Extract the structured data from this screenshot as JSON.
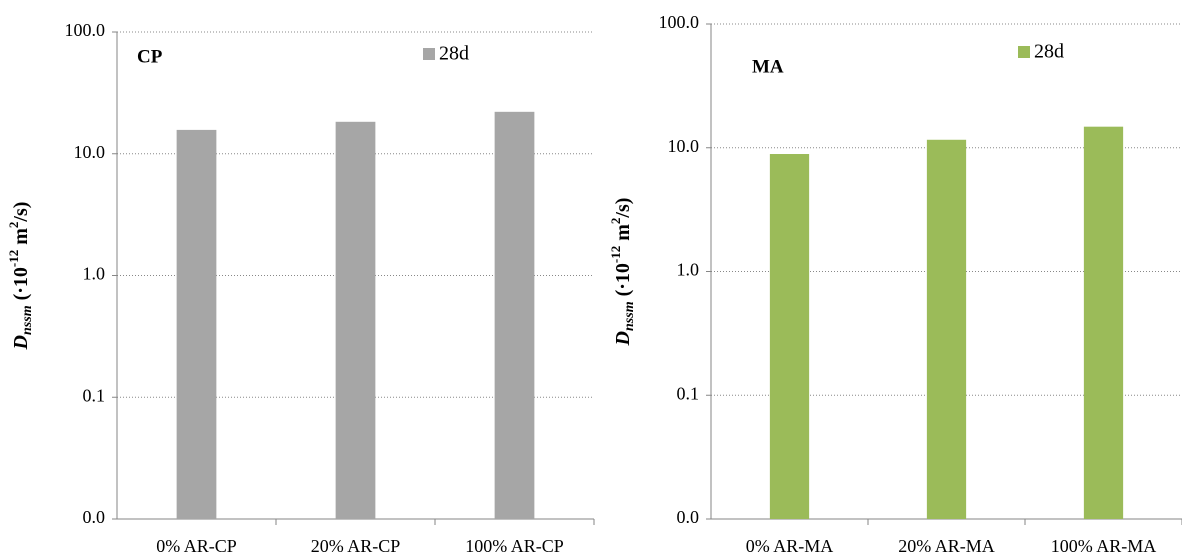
{
  "chart_data": [
    {
      "type": "bar",
      "annotation": "CP",
      "ylabel_parts": [
        "D",
        "nssm",
        " (·10",
        "-12",
        " m",
        "2",
        "/s)"
      ],
      "categories": [
        "0% AR-CP",
        "20% AR-CP",
        "100% AR-CP"
      ],
      "series": [
        {
          "name": "28d",
          "color": "#a6a6a6",
          "values": [
            15.7,
            18.3,
            22.1
          ]
        }
      ],
      "log_scale": true,
      "grid": true,
      "legend": "top-right",
      "ylim": [
        0.01,
        100
      ],
      "yticks": [
        {
          "value": 0.01,
          "label": "0.0"
        },
        {
          "value": 0.1,
          "label": "0.1"
        },
        {
          "value": 1,
          "label": "1.0"
        },
        {
          "value": 10,
          "label": "10.0"
        },
        {
          "value": 100,
          "label": "100.0"
        }
      ]
    },
    {
      "type": "bar",
      "annotation": "MA",
      "ylabel_parts": [
        "D",
        "nssm",
        " (·10",
        "-12",
        " m",
        "2",
        "/s)"
      ],
      "categories": [
        "0% AR-MA",
        "20% AR-MA",
        "100% AR-MA"
      ],
      "series": [
        {
          "name": "28d",
          "color": "#9bbb59",
          "values": [
            8.9,
            11.6,
            14.8
          ]
        }
      ],
      "log_scale": true,
      "grid": true,
      "legend": "top-right",
      "ylim": [
        0.01,
        100
      ],
      "yticks": [
        {
          "value": 0.01,
          "label": "0.0"
        },
        {
          "value": 0.1,
          "label": "0.1"
        },
        {
          "value": 1,
          "label": "1.0"
        },
        {
          "value": 10,
          "label": "10.0"
        },
        {
          "value": 100,
          "label": "100.0"
        }
      ]
    }
  ]
}
